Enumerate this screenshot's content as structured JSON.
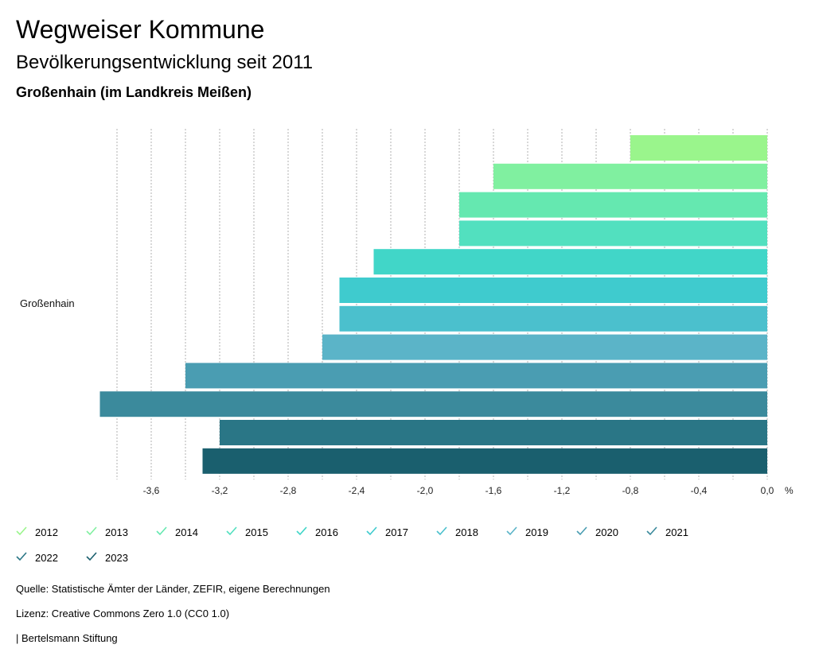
{
  "header": {
    "title": "Wegweiser Kommune",
    "subtitle": "Bevölkerungsentwicklung seit 2011",
    "region": "Großenhain (im Landkreis Meißen)"
  },
  "chart_data": {
    "type": "bar",
    "orientation": "horizontal",
    "categories": [
      "Großenhain"
    ],
    "unit": "%",
    "xlim": [
      -3.8,
      0.0
    ],
    "x_ticks": [
      -3.6,
      -3.2,
      -2.8,
      -2.4,
      -2.0,
      -1.6,
      -1.2,
      -0.8,
      -0.4,
      0.0
    ],
    "x_tick_labels": [
      "-3,6",
      "-3,2",
      "-2,8",
      "-2,4",
      "-2,0",
      "-1,6",
      "-1,2",
      "-0,8",
      "-0,4",
      "0,0"
    ],
    "grid": true,
    "series": [
      {
        "name": "2012",
        "values": [
          -0.8
        ],
        "color": "#9af58c"
      },
      {
        "name": "2013",
        "values": [
          -1.6
        ],
        "color": "#80f0a0"
      },
      {
        "name": "2014",
        "values": [
          -1.8
        ],
        "color": "#65e8b0"
      },
      {
        "name": "2015",
        "values": [
          -1.8
        ],
        "color": "#52e0bf"
      },
      {
        "name": "2016",
        "values": [
          -2.3
        ],
        "color": "#41d6c8"
      },
      {
        "name": "2017",
        "values": [
          -2.5
        ],
        "color": "#3fcbce"
      },
      {
        "name": "2018",
        "values": [
          -2.5
        ],
        "color": "#4bc0cd"
      },
      {
        "name": "2019",
        "values": [
          -2.6
        ],
        "color": "#5bb4c8"
      },
      {
        "name": "2020",
        "values": [
          -3.4
        ],
        "color": "#4a9db2"
      },
      {
        "name": "2021",
        "values": [
          -3.9
        ],
        "color": "#3b8a9c"
      },
      {
        "name": "2022",
        "values": [
          -3.2
        ],
        "color": "#2a7686"
      },
      {
        "name": "2023",
        "values": [
          -3.3
        ],
        "color": "#1a5f6e"
      }
    ]
  },
  "footer": {
    "source": "Quelle: Statistische Ämter der Länder, ZEFIR, eigene Berechnungen",
    "license": "Lizenz: Creative Commons Zero 1.0 (CC0 1.0)",
    "publisher": "| Bertelsmann Stiftung"
  }
}
